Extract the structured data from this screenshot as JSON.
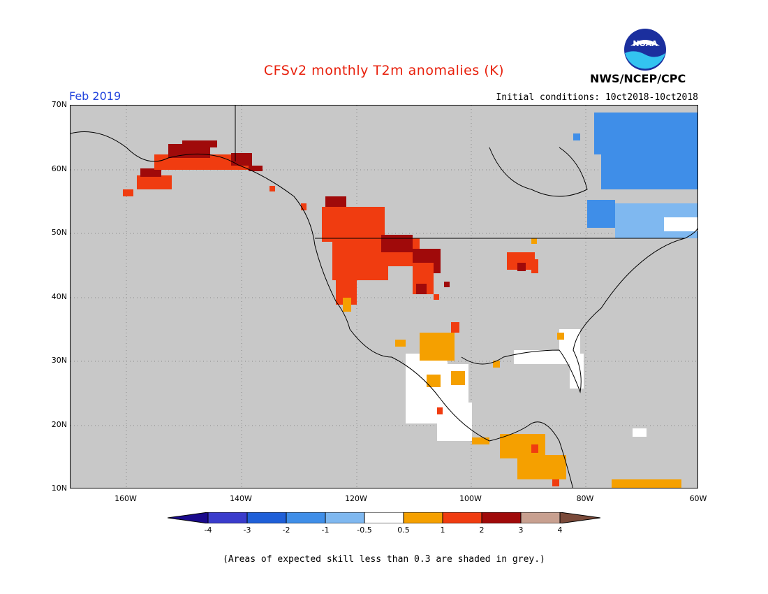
{
  "header": {
    "title": "CFSv2 monthly T2m anomalies (K)",
    "agency": "NWS/NCEP/CPC",
    "logo_text": "NOAA",
    "month": "Feb 2019",
    "initial_conditions": "Initial conditions: 10ct2018-10ct2018"
  },
  "axes": {
    "lat_labels": [
      "70N",
      "60N",
      "50N",
      "40N",
      "30N",
      "20N",
      "10N"
    ],
    "lon_labels": [
      "160W",
      "140W",
      "120W",
      "100W",
      "80W",
      "60W"
    ]
  },
  "colorbar": {
    "ticks": [
      "-4",
      "-3",
      "-2",
      "-1",
      "-0.5",
      "0.5",
      "1",
      "2",
      "3",
      "4"
    ],
    "colors": {
      "lt_m4": "#1a0a8c",
      "m4_m3": "#3a3ccc",
      "m3_m2": "#1f5fd8",
      "m2_m1": "#3f8ee8",
      "m1_m05": "#7fb8f0",
      "neutral": "#ffffff",
      "p05_p1": "#f5a000",
      "p1_p2": "#f03c10",
      "p2_p3": "#a00a0a",
      "p3_p4": "#c8a090",
      "gt_p4": "#7a4a3a",
      "grey": "#c8c8c8"
    }
  },
  "footnote": "(Areas of expected skill less than 0.3 are shaded in grey.)"
}
